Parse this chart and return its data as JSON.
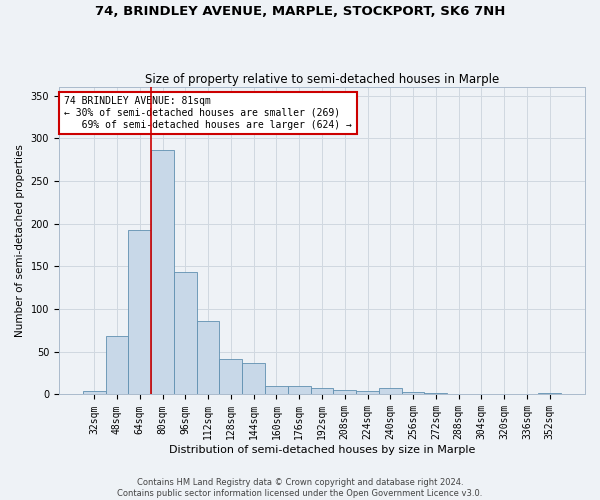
{
  "title1": "74, BRINDLEY AVENUE, MARPLE, STOCKPORT, SK6 7NH",
  "title2": "Size of property relative to semi-detached houses in Marple",
  "xlabel": "Distribution of semi-detached houses by size in Marple",
  "ylabel": "Number of semi-detached properties",
  "footer": "Contains HM Land Registry data © Crown copyright and database right 2024.\nContains public sector information licensed under the Open Government Licence v3.0.",
  "bin_labels": [
    "32sqm",
    "48sqm",
    "64sqm",
    "80sqm",
    "96sqm",
    "112sqm",
    "128sqm",
    "144sqm",
    "160sqm",
    "176sqm",
    "192sqm",
    "208sqm",
    "224sqm",
    "240sqm",
    "256sqm",
    "272sqm",
    "288sqm",
    "304sqm",
    "320sqm",
    "336sqm",
    "352sqm"
  ],
  "bar_values": [
    4,
    69,
    193,
    286,
    144,
    86,
    42,
    37,
    10,
    10,
    7,
    5,
    4,
    8,
    3,
    2,
    1,
    0,
    0,
    1,
    2
  ],
  "bar_color": "#c8d8e8",
  "bar_edge_color": "#6090b0",
  "highlight_bar_idx": 3,
  "highlight_color": "#cc0000",
  "annotation_text": "74 BRINDLEY AVENUE: 81sqm\n← 30% of semi-detached houses are smaller (269)\n   69% of semi-detached houses are larger (624) →",
  "annotation_box_color": "white",
  "annotation_box_edge": "#cc0000",
  "ylim": [
    0,
    360
  ],
  "yticks": [
    0,
    50,
    100,
    150,
    200,
    250,
    300,
    350
  ],
  "grid_color": "#d0d8e0",
  "bg_color": "#eef2f6",
  "title1_fontsize": 9.5,
  "title2_fontsize": 8.5,
  "xlabel_fontsize": 8,
  "ylabel_fontsize": 7.5,
  "footer_fontsize": 6,
  "tick_fontsize": 7
}
